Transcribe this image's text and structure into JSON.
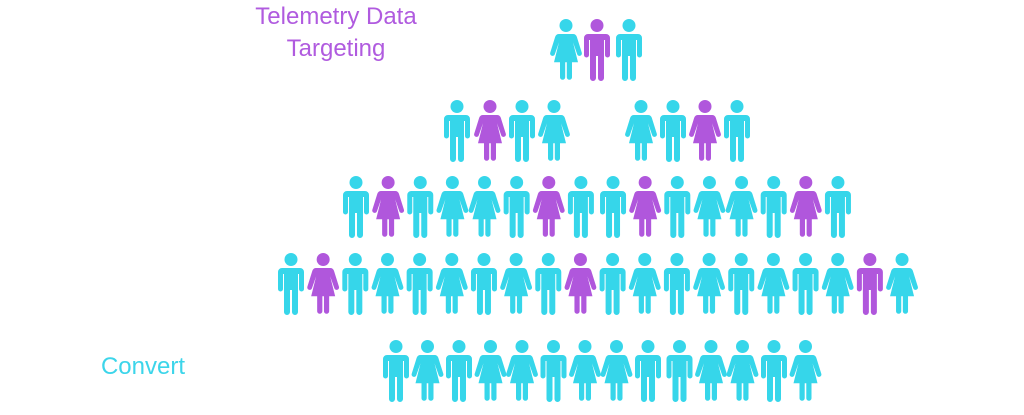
{
  "top_label": {
    "lines": [
      "Telemetry Data",
      "Targeting"
    ]
  },
  "bottom_label": "Convert"
}
